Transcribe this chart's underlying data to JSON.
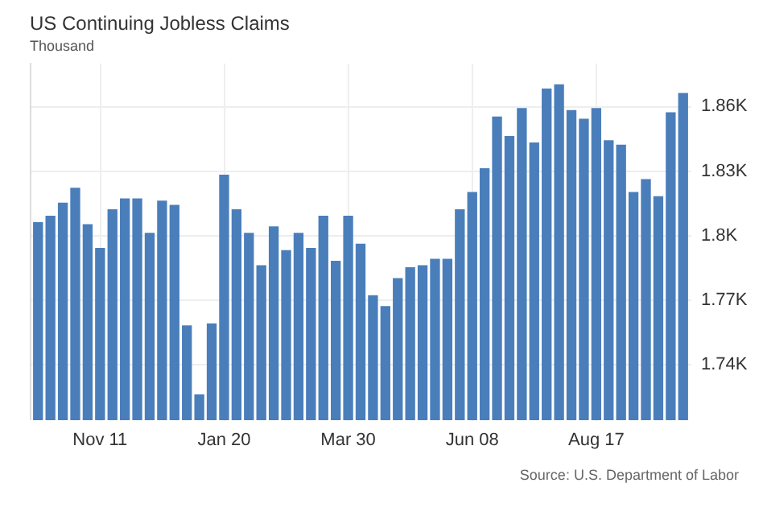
{
  "chart_data": {
    "type": "bar",
    "title": "US Continuing Jobless Claims",
    "subtitle": "Thousand",
    "categories": [
      null,
      null,
      null,
      null,
      null,
      "Nov 11",
      null,
      null,
      null,
      null,
      null,
      null,
      null,
      null,
      null,
      "Jan 20",
      null,
      null,
      null,
      null,
      null,
      null,
      null,
      null,
      null,
      "Mar 30",
      null,
      null,
      null,
      null,
      null,
      null,
      null,
      null,
      null,
      "Jun 08",
      null,
      null,
      null,
      null,
      null,
      null,
      null,
      null,
      null,
      "Aug 17",
      null,
      null,
      null,
      null,
      null,
      null,
      null
    ],
    "series": [
      {
        "color": "#4a7ebb",
        "values": [
          1806,
          1809,
          1815,
          1822,
          1805,
          1794,
          1812,
          1817,
          1817,
          1801,
          1816,
          1814,
          1758,
          1726,
          1759,
          1828,
          1812,
          1801,
          1786,
          1804,
          1793,
          1801,
          1794,
          1809,
          1788,
          1809,
          1796,
          1772,
          1767,
          1780,
          1785,
          1786,
          1789,
          1789,
          1812,
          1820,
          1831,
          1855,
          1846,
          1859,
          1843,
          1868,
          1870,
          1858,
          1854,
          1859,
          1844,
          1842,
          1820,
          1826,
          1818,
          1857,
          1866
        ]
      }
    ],
    "ylim": [
      1714,
      1880
    ],
    "yticks": [
      {
        "value": 1740,
        "label": "1.74K"
      },
      {
        "value": 1770,
        "label": "1.77K"
      },
      {
        "value": 1800,
        "label": "1.8K"
      },
      {
        "value": 1830,
        "label": "1.83K"
      },
      {
        "value": 1860,
        "label": "1.86K"
      }
    ],
    "grid": true,
    "annotations": [
      "Source: U.S. Department of Labor"
    ]
  }
}
